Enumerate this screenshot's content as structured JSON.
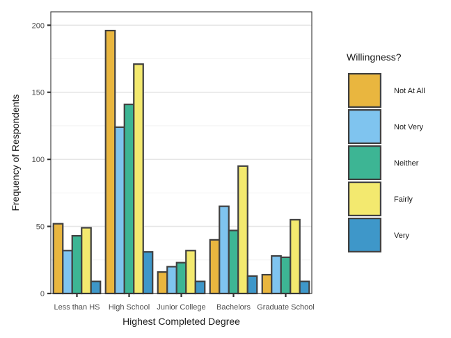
{
  "chart_data": {
    "type": "bar",
    "title": "",
    "xlabel": "Highest Completed Degree",
    "ylabel": "Frequency of Respondents",
    "categories": [
      "Less than HS",
      "High School",
      "Junior College",
      "Bachelors",
      "Graduate School"
    ],
    "ylim": [
      0,
      210
    ],
    "yticks": [
      0,
      50,
      100,
      150,
      200
    ],
    "grid": true,
    "legend": {
      "title": "Willingness?",
      "position": "right"
    },
    "series": [
      {
        "name": "Not At All",
        "color": "#E9B63F",
        "values": [
          52,
          196,
          16,
          40,
          14
        ]
      },
      {
        "name": "Not Very",
        "color": "#7FC4EF",
        "values": [
          32,
          124,
          20,
          65,
          28
        ]
      },
      {
        "name": "Neither",
        "color": "#3DB594",
        "values": [
          43,
          141,
          23,
          47,
          27
        ]
      },
      {
        "name": "Fairly",
        "color": "#F3E96F",
        "values": [
          49,
          171,
          32,
          95,
          55
        ]
      },
      {
        "name": "Very",
        "color": "#3E97C9",
        "values": [
          9,
          31,
          9,
          13,
          9
        ]
      }
    ]
  }
}
